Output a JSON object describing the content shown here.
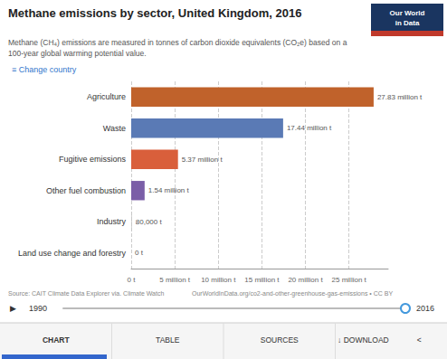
{
  "chart_data": {
    "type": "bar",
    "orientation": "horizontal",
    "title": "Methane emissions by sector, United Kingdom, 2016",
    "subtitle": [
      "Methane (CH₄) emissions are measured in tonnes of carbon dioxide equivalents (CO₂e) based on a",
      "100-year global warming potential value."
    ],
    "categories": [
      "Agriculture",
      "Waste",
      "Fugitive emissions",
      "Other fuel combustion",
      "Industry",
      "Land use change and forestry"
    ],
    "values": [
      27.83,
      17.44,
      5.37,
      1.54,
      0.08,
      0.0
    ],
    "value_labels": [
      "27.83 million t",
      "17.44 million t",
      "5.37 million t",
      "1.54 million t",
      "80,000 t",
      "0 t"
    ],
    "data_labels": true,
    "colors": [
      "#c0622b",
      "#5a7ab5",
      "#d95f3b",
      "#7b5ea7",
      "#c8c8c8",
      "#c8c8c8"
    ],
    "xlim": [
      0,
      29.5
    ],
    "xticks": [
      {
        "value": 0,
        "label": "0 t"
      },
      {
        "value": 5,
        "label": "5 million t"
      },
      {
        "value": 10,
        "label": "10 million t"
      },
      {
        "value": 15,
        "label": "15 million t"
      },
      {
        "value": 20,
        "label": "20 million t"
      },
      {
        "value": 25,
        "label": "25 million t"
      }
    ],
    "grid": true,
    "annotations": [
      "≡ Change country",
      "Our World",
      "in Data",
      "Source: CAIT Climate Data Explorer via. Climate Watch",
      "OurWorldInData.org/co2-and-other-greenhouse-gas-emissions • CC BY",
      "▶",
      "1990",
      "2016",
      "CHART",
      "TABLE",
      "SOURCES",
      "↓ DOWNLOAD",
      "<"
    ]
  }
}
